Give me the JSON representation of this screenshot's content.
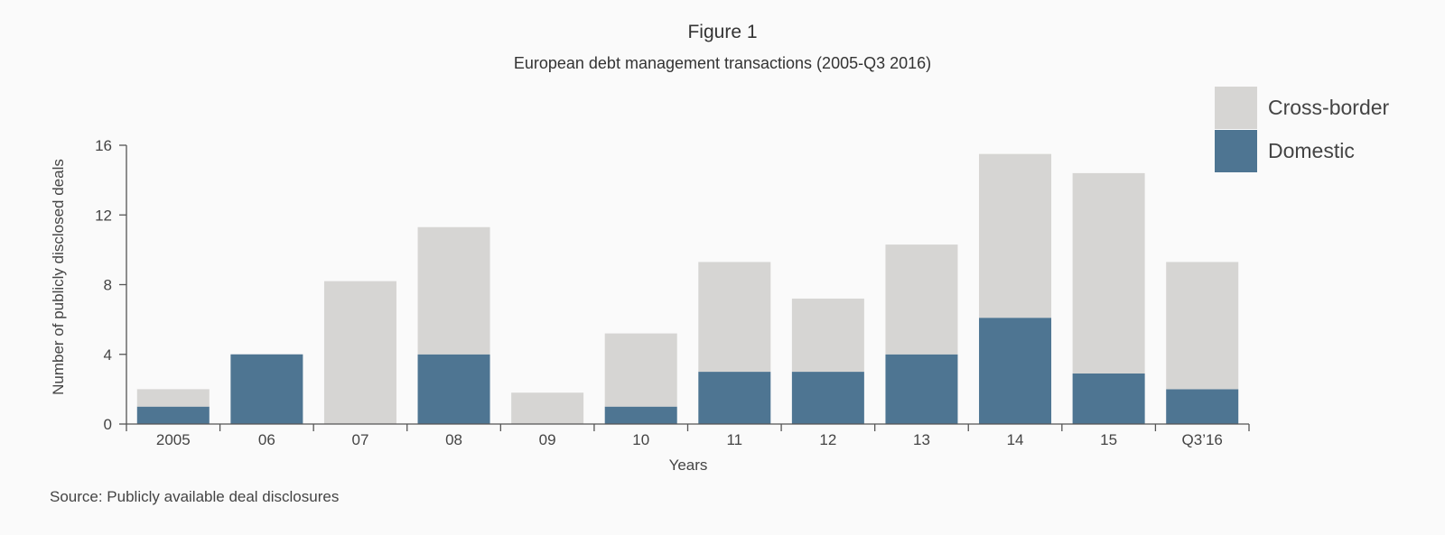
{
  "figure": {
    "title": "Figure 1",
    "subtitle": "European debt management transactions (2005-Q3 2016)",
    "source": "Source: Publicly available deal disclosures"
  },
  "colors": {
    "cross_border": "#d6d5d3",
    "domestic": "#4e7592",
    "axis": "#555555"
  },
  "chart_data": {
    "type": "bar",
    "stacked": true,
    "title": "European debt management transactions (2005-Q3 2016)",
    "xlabel": "Years",
    "ylabel": "Number of publicly disclosed deals",
    "ylim": [
      0,
      16
    ],
    "yticks": [
      0,
      4,
      8,
      12,
      16
    ],
    "categories": [
      "2005",
      "06",
      "07",
      "08",
      "09",
      "10",
      "11",
      "12",
      "13",
      "14",
      "15",
      "Q3’16"
    ],
    "series": [
      {
        "name": "Domestic",
        "color": "#4e7592",
        "values": [
          1,
          4,
          0,
          4,
          0,
          1,
          3,
          3,
          4,
          6.1,
          2.9,
          2
        ]
      },
      {
        "name": "Cross-border",
        "color": "#d6d5d3",
        "values": [
          1,
          0,
          8.2,
          7.3,
          1.8,
          4.2,
          6.3,
          4.2,
          6.3,
          9.4,
          11.5,
          7.3
        ]
      }
    ],
    "legend": {
      "position": "top-right",
      "entries": [
        "Cross-border",
        "Domestic"
      ]
    },
    "grid": false
  }
}
